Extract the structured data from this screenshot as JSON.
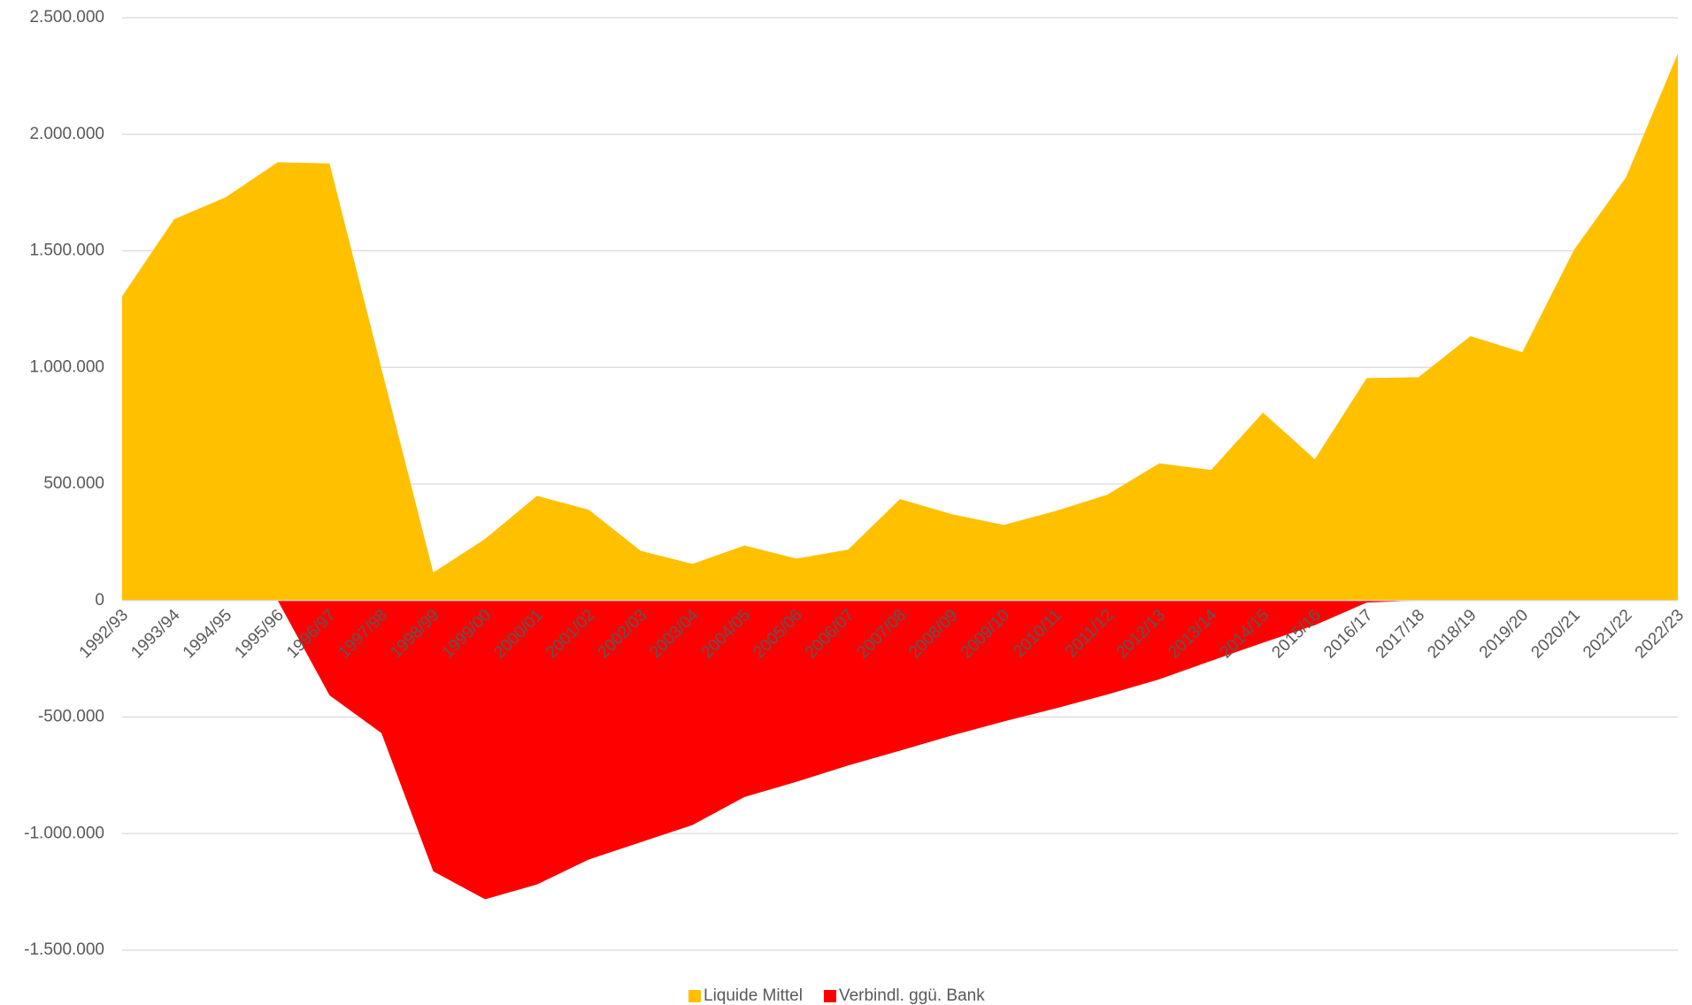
{
  "chart_data": {
    "type": "area",
    "categories": [
      "1992/93",
      "1993/94",
      "1994/95",
      "1995/96",
      "1996/97",
      "1997/98",
      "1998/99",
      "1999/00",
      "2000/01",
      "2001/02",
      "2002/03",
      "2003/04",
      "2004/05",
      "2005/06",
      "2006/07",
      "2007/08",
      "2008/09",
      "2009/10",
      "2010/11",
      "2011/12",
      "2012/13",
      "2013/14",
      "2014/15",
      "2015/16",
      "2016/17",
      "2017/18",
      "2018/19",
      "2019/20",
      "2020/21",
      "2021/22",
      "2022/23"
    ],
    "series": [
      {
        "name": "Liquide Mittel",
        "color": "#ffc000",
        "values": [
          1305000,
          1635000,
          1730000,
          1880000,
          1875000,
          995000,
          120000,
          264000,
          449000,
          389000,
          213000,
          157000,
          236000,
          180000,
          218000,
          435000,
          370000,
          324000,
          384000,
          454000,
          588000,
          560000,
          806000,
          606000,
          954000,
          958000,
          1134000,
          1065000,
          1505000,
          1815000,
          2347000
        ]
      },
      {
        "name": "Verbindl. ggü. Bank",
        "color": "#ff0000",
        "values": [
          0,
          0,
          0,
          0,
          -407000,
          -569000,
          -1162000,
          -1282000,
          -1218000,
          -1111000,
          -1037000,
          -963000,
          -843000,
          -778000,
          -708000,
          -644000,
          -579000,
          -519000,
          -463000,
          -403000,
          -338000,
          -259000,
          -181000,
          -106000,
          -9000,
          0,
          0,
          0,
          0,
          0,
          0
        ]
      }
    ],
    "ylim": [
      -1500000,
      2500000
    ],
    "yticks": [
      {
        "value": -1500000,
        "label": "-1.500.000"
      },
      {
        "value": -1000000,
        "label": "-1.000.000"
      },
      {
        "value": -500000,
        "label": "-500.000"
      },
      0,
      {
        "value": 500000,
        "label": "500.000"
      },
      {
        "value": 1000000,
        "label": "1.000.000"
      },
      {
        "value": 1500000,
        "label": "1.500.000"
      },
      {
        "value": 2000000,
        "label": "2.000.000"
      },
      {
        "value": 2500000,
        "label": "2.500.000"
      }
    ],
    "grid": true,
    "legend": "bottom"
  }
}
